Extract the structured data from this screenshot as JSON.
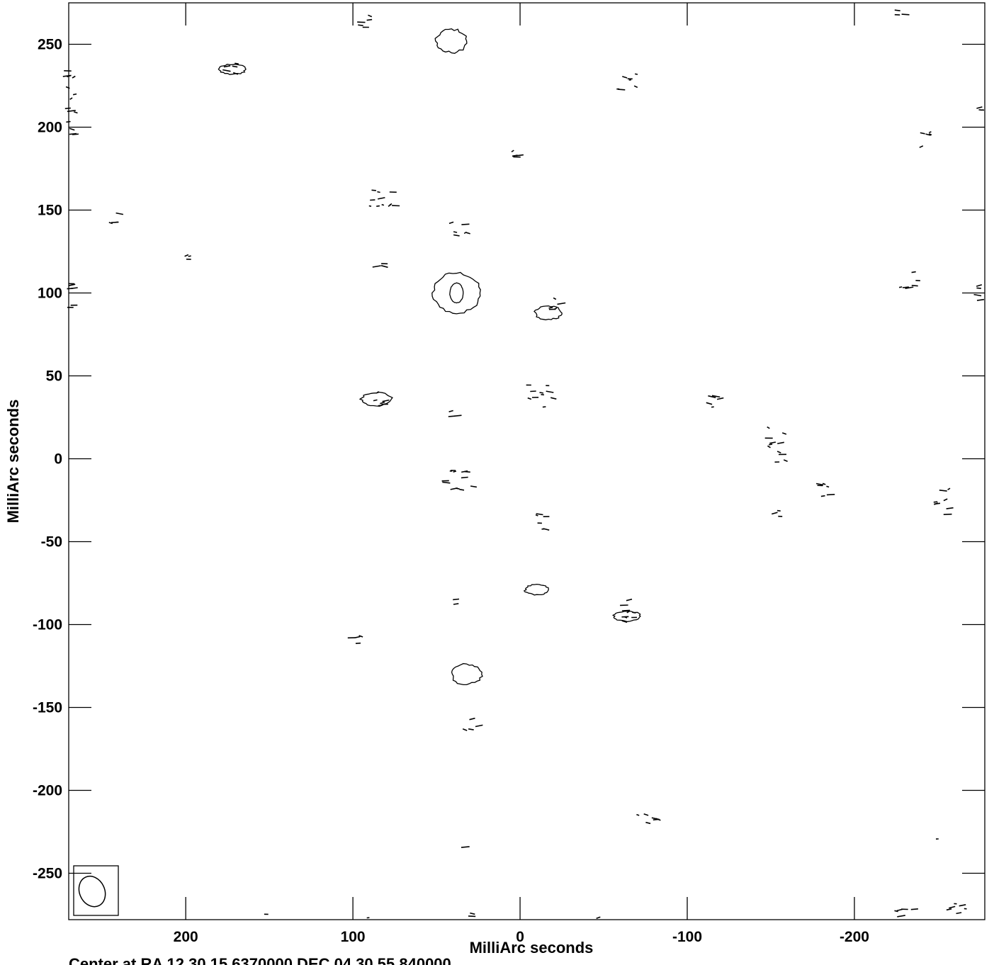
{
  "chart_data": {
    "type": "contour",
    "xlabel": "MilliArc seconds",
    "ylabel": "MilliArc seconds",
    "footer": "Center at RA 12 30 15.6370000  DEC 04 30 55.840000",
    "xlim": [
      270,
      -278
    ],
    "ylim": [
      -278,
      275
    ],
    "x_ticks": [
      200,
      100,
      0,
      -100,
      -200
    ],
    "x_tick_labels": [
      "200",
      "100",
      "0",
      "-100",
      "-200"
    ],
    "y_ticks": [
      250,
      200,
      150,
      100,
      50,
      0,
      -50,
      -100,
      -150,
      -200,
      -250
    ],
    "y_tick_labels": [
      "250",
      "200",
      "150",
      "100",
      "50",
      "0",
      "-50",
      "-100",
      "-150",
      "-200",
      "-250"
    ],
    "beam": {
      "x": 256,
      "y": -261,
      "major": 19,
      "minor": 15,
      "pa_deg": 25
    },
    "source": {
      "name": "central component",
      "x": 38,
      "y": 100,
      "levels": [
        {
          "rx": 14,
          "ry": 12
        },
        {
          "rx": 4,
          "ry": 6
        }
      ]
    },
    "closed_contours": [
      {
        "x": 41,
        "y": 252,
        "rx": 9,
        "ry": 7
      },
      {
        "x": 32,
        "y": -130,
        "rx": 9,
        "ry": 6
      },
      {
        "x": 86,
        "y": 36,
        "rx": 9,
        "ry": 4
      },
      {
        "x": 172,
        "y": 235,
        "rx": 8,
        "ry": 3
      },
      {
        "x": -10,
        "y": -79,
        "rx": 7,
        "ry": 3
      },
      {
        "x": -17,
        "y": 88,
        "rx": 8,
        "ry": 4
      },
      {
        "x": -64,
        "y": -95,
        "rx": 8,
        "ry": 3
      }
    ],
    "noise_clusters": [
      {
        "x": 92,
        "y": 265,
        "w": 10,
        "h": 10,
        "n": 5
      },
      {
        "x": 268,
        "y": 215,
        "w": 6,
        "h": 40,
        "n": 14
      },
      {
        "x": 172,
        "y": 234,
        "w": 9,
        "h": 9,
        "n": 5
      },
      {
        "x": -64,
        "y": 229,
        "w": 12,
        "h": 15,
        "n": 7
      },
      {
        "x": -226,
        "y": 269,
        "w": 12,
        "h": 4,
        "n": 3
      },
      {
        "x": -275,
        "y": 215,
        "w": 3,
        "h": 10,
        "n": 3
      },
      {
        "x": -242,
        "y": 193,
        "w": 10,
        "h": 12,
        "n": 5
      },
      {
        "x": 2,
        "y": 185,
        "w": 10,
        "h": 10,
        "n": 5
      },
      {
        "x": 82,
        "y": 154,
        "w": 16,
        "h": 16,
        "n": 11
      },
      {
        "x": 243,
        "y": 145,
        "w": 10,
        "h": 8,
        "n": 4
      },
      {
        "x": 37,
        "y": 139,
        "w": 12,
        "h": 11,
        "n": 6
      },
      {
        "x": 199,
        "y": 121,
        "w": 6,
        "h": 7,
        "n": 3
      },
      {
        "x": 84,
        "y": 116,
        "w": 9,
        "h": 5,
        "n": 3
      },
      {
        "x": -233,
        "y": 109,
        "w": 11,
        "h": 12,
        "n": 6
      },
      {
        "x": 268,
        "y": 99,
        "w": 3,
        "h": 16,
        "n": 6
      },
      {
        "x": -275,
        "y": 101,
        "w": 3,
        "h": 12,
        "n": 4
      },
      {
        "x": -22,
        "y": 94,
        "w": 10,
        "h": 10,
        "n": 5
      },
      {
        "x": 85,
        "y": 37,
        "w": 12,
        "h": 11,
        "n": 6
      },
      {
        "x": -13,
        "y": 37,
        "w": 16,
        "h": 15,
        "n": 10
      },
      {
        "x": -117,
        "y": 33,
        "w": 10,
        "h": 10,
        "n": 5
      },
      {
        "x": 38,
        "y": 26,
        "w": 9,
        "h": 6,
        "n": 3
      },
      {
        "x": -155,
        "y": 8,
        "w": 13,
        "h": 22,
        "n": 11
      },
      {
        "x": 36,
        "y": -12,
        "w": 18,
        "h": 14,
        "n": 12
      },
      {
        "x": -183,
        "y": -20,
        "w": 11,
        "h": 10,
        "n": 6
      },
      {
        "x": -253,
        "y": -26,
        "w": 10,
        "h": 16,
        "n": 8
      },
      {
        "x": -153,
        "y": -32,
        "w": 6,
        "h": 7,
        "n": 3
      },
      {
        "x": -10,
        "y": -38,
        "w": 12,
        "h": 10,
        "n": 6
      },
      {
        "x": 39,
        "y": -87,
        "w": 4,
        "h": 5,
        "n": 2
      },
      {
        "x": -64,
        "y": -93,
        "w": 12,
        "h": 16,
        "n": 9
      },
      {
        "x": 98,
        "y": -109,
        "w": 10,
        "h": 8,
        "n": 4
      },
      {
        "x": 28,
        "y": -160,
        "w": 10,
        "h": 8,
        "n": 4
      },
      {
        "x": -75,
        "y": -218,
        "w": 18,
        "h": 8,
        "n": 6
      },
      {
        "x": 32,
        "y": -234,
        "w": 2,
        "h": 2,
        "n": 1
      },
      {
        "x": -250,
        "y": -229,
        "w": 2,
        "h": 2,
        "n": 1
      },
      {
        "x": -231,
        "y": -273,
        "w": 14,
        "h": 6,
        "n": 5
      },
      {
        "x": -262,
        "y": -271,
        "w": 12,
        "h": 8,
        "n": 6
      },
      {
        "x": 152,
        "y": -275,
        "w": 2,
        "h": 2,
        "n": 1
      },
      {
        "x": 28,
        "y": -275,
        "w": 8,
        "h": 2,
        "n": 2
      },
      {
        "x": 92,
        "y": -276,
        "w": 3,
        "h": 2,
        "n": 1
      },
      {
        "x": -46,
        "y": -276,
        "w": 2,
        "h": 2,
        "n": 1
      }
    ]
  }
}
